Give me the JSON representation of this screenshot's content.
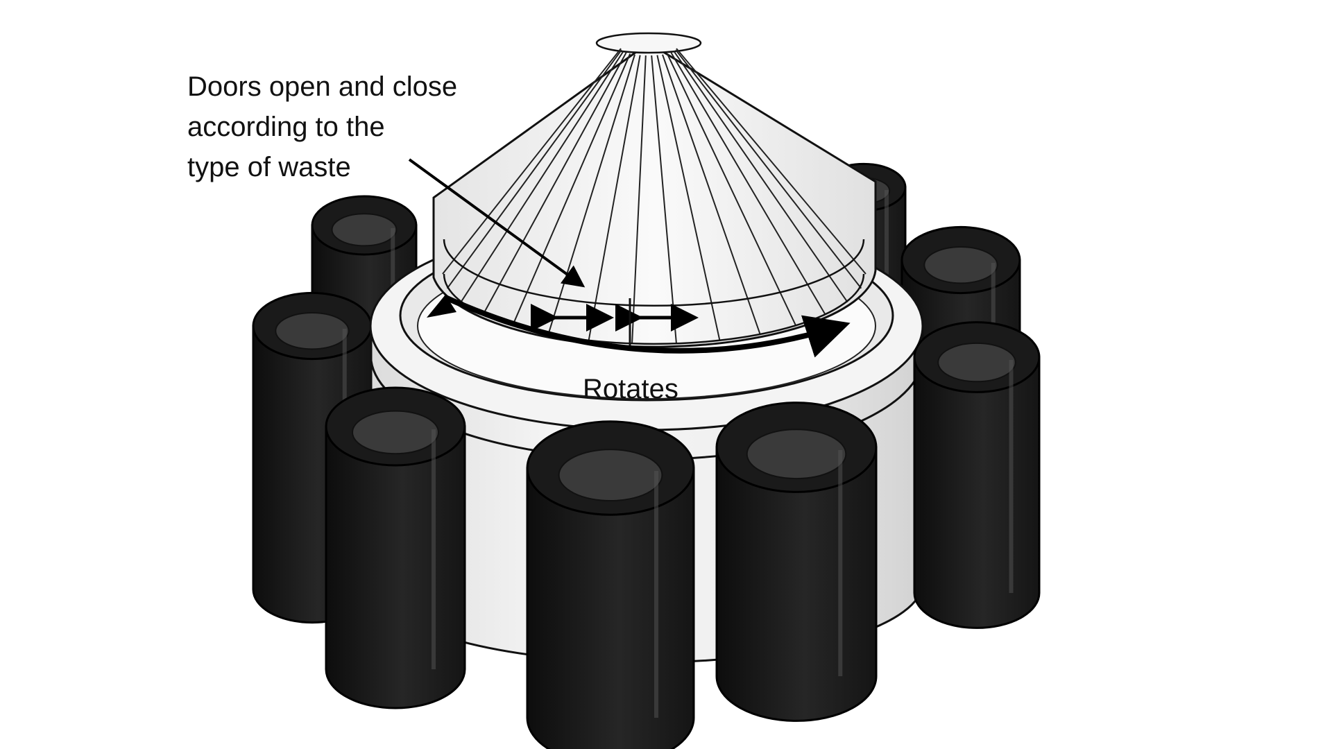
{
  "annotations": {
    "doors_line1": "Doors open and close",
    "doors_line2": "according to the",
    "doors_line3": "type of waste",
    "rotates": "Rotates"
  },
  "colors": {
    "background": "#ffffff",
    "bins": "#1c1c1c",
    "structure": "#f2f2f2",
    "outline": "#111111",
    "arrows": "#000000"
  },
  "parts": {
    "bin_count": 8,
    "cone_rib_count": 16
  }
}
